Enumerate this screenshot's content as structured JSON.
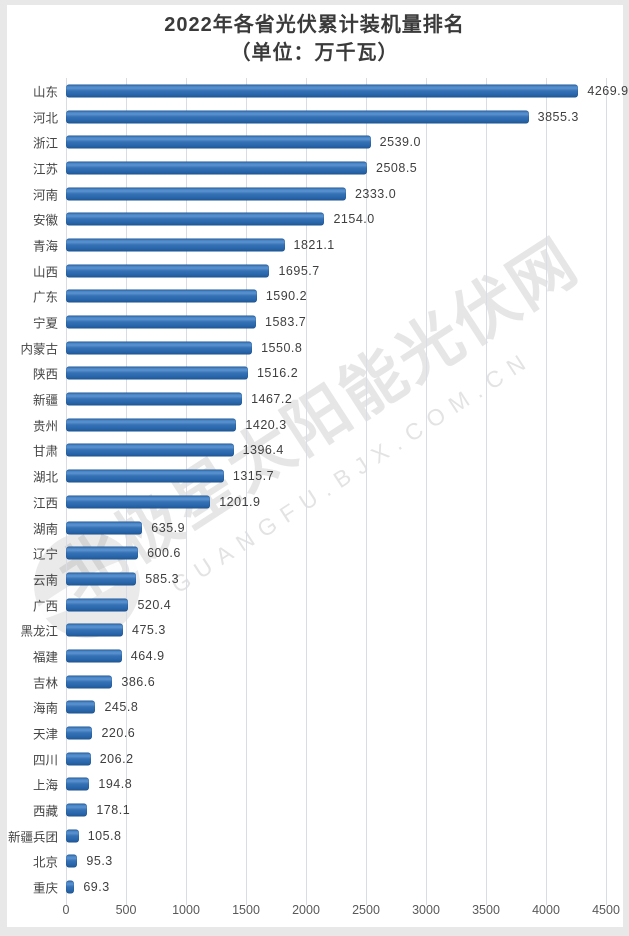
{
  "title": {
    "line1": "2022年各省光伏累计装机量排名",
    "line2": "（单位：万千瓦）"
  },
  "chart_data": {
    "type": "bar",
    "orientation": "horizontal",
    "title": "2022年各省光伏累计装机量排名",
    "subtitle": "（单位：万千瓦）",
    "unit": "万千瓦",
    "categories": [
      "山东",
      "河北",
      "浙江",
      "江苏",
      "河南",
      "安徽",
      "青海",
      "山西",
      "广东",
      "宁夏",
      "内蒙古",
      "陕西",
      "新疆",
      "贵州",
      "甘肃",
      "湖北",
      "江西",
      "湖南",
      "辽宁",
      "云南",
      "广西",
      "黑龙江",
      "福建",
      "吉林",
      "海南",
      "天津",
      "四川",
      "上海",
      "西藏",
      "新疆兵团",
      "北京",
      "重庆"
    ],
    "values": [
      4269.9,
      3855.3,
      2539.0,
      2508.5,
      2333.0,
      2154.0,
      1821.1,
      1695.7,
      1590.2,
      1583.7,
      1550.8,
      1516.2,
      1467.2,
      1420.3,
      1396.4,
      1315.7,
      1201.9,
      635.9,
      600.6,
      585.3,
      520.4,
      475.3,
      464.9,
      386.6,
      245.8,
      220.6,
      206.2,
      194.8,
      178.1,
      105.8,
      95.3,
      69.3
    ],
    "xlabel": "",
    "ylabel": "",
    "xlim": [
      0,
      4500
    ],
    "x_ticks": [
      0,
      500,
      1000,
      1500,
      2000,
      2500,
      3000,
      3500,
      4000,
      4500
    ],
    "grid": true,
    "legend": false,
    "bar_color": "#2e6db4",
    "gridline_color": "#d9dce1"
  },
  "watermark": {
    "text": "北极星太阳能光伏网",
    "subtext": "GUANGFU.BJX.COM.CN"
  }
}
